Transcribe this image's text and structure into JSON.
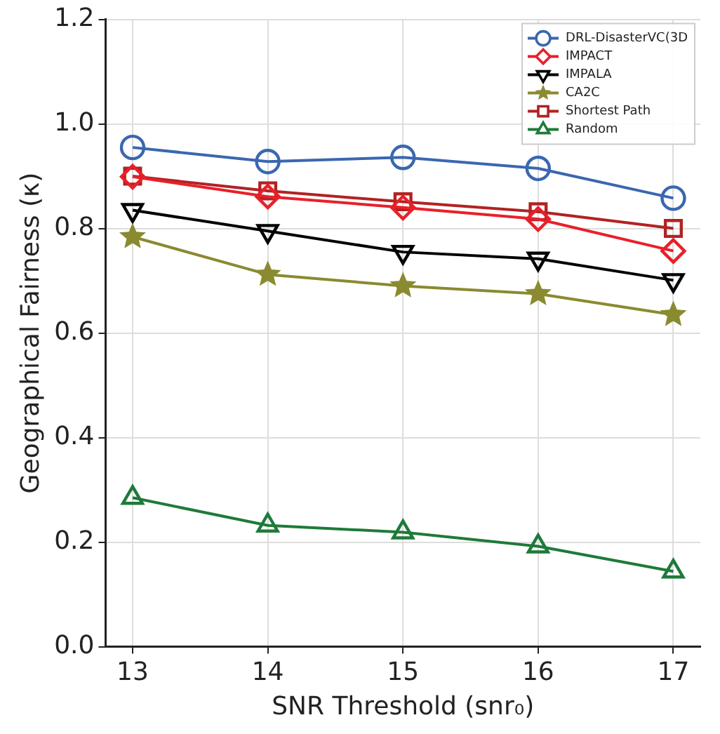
{
  "chart_data": {
    "type": "line",
    "xlabel": "SNR Threshold (snr₀)",
    "ylabel": "Geographical Fairness (κ)",
    "x": [
      13,
      14,
      15,
      16,
      17
    ],
    "xlim": [
      12.8,
      17.2
    ],
    "xticks": [
      13,
      14,
      15,
      16,
      17
    ],
    "ylim": [
      0,
      1.2
    ],
    "yticks": [
      {
        "value": 0,
        "label": "0.0"
      },
      {
        "value": 0.2,
        "label": "0.2"
      },
      {
        "value": 0.4,
        "label": "0.4"
      },
      {
        "value": 0.6,
        "label": "0.6"
      },
      {
        "value": 0.8,
        "label": "0.8"
      },
      {
        "value": 1.0,
        "label": "1.0"
      },
      {
        "value": 1.2,
        "label": "1.2"
      }
    ],
    "grid": true,
    "legend": "top right",
    "line_style": "solid",
    "series": [
      {
        "name": "DRL-DisasterVC(3D",
        "color": "#3a67b0",
        "marker": "circle",
        "values": [
          0.955,
          0.928,
          0.936,
          0.915,
          0.858
        ]
      },
      {
        "name": "IMPACT",
        "color": "#e8202a",
        "marker": "diamond",
        "values": [
          0.899,
          0.861,
          0.84,
          0.818,
          0.757
        ]
      },
      {
        "name": "IMPALA",
        "color": "#000000",
        "marker": "triangle_down",
        "values": [
          0.835,
          0.795,
          0.755,
          0.742,
          0.701
        ]
      },
      {
        "name": "CA2C",
        "color": "#8a8a30",
        "marker": "star",
        "values": [
          0.784,
          0.712,
          0.69,
          0.675,
          0.635
        ]
      },
      {
        "name": "Shortest Path",
        "color": "#b22222",
        "marker": "square",
        "values": [
          0.9,
          0.872,
          0.851,
          0.832,
          0.8
        ]
      },
      {
        "name": "Random",
        "color": "#1f7a3a",
        "marker": "triangle",
        "values": [
          0.285,
          0.232,
          0.219,
          0.192,
          0.144
        ]
      }
    ]
  }
}
